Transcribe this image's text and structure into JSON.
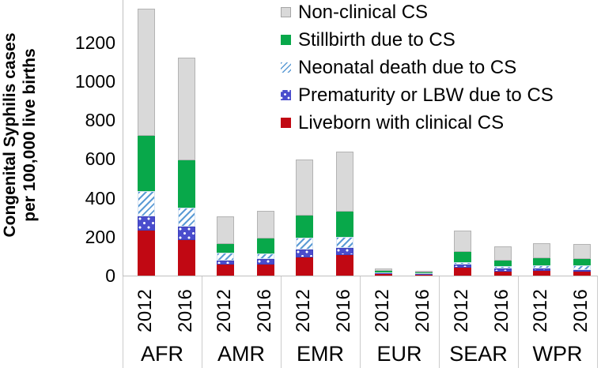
{
  "colors": {
    "liveborn_red": "#c10813",
    "prematurity_blue": "#4a4dcd",
    "neonatal_stripe_blue": "#5b9bd5",
    "stillbirth_green": "#08a84a",
    "nonclinical_gray": "#d9d9d9",
    "bar_border_gray": "#b3b3b3",
    "axis_gray": "#bfbfbf"
  },
  "legend": {
    "items": [
      {
        "label": "Non-clinical CS",
        "swatch": "gray"
      },
      {
        "label": "Stillbirth due to CS",
        "swatch": "green"
      },
      {
        "label": "Neonatal death due to CS",
        "swatch": "hatch"
      },
      {
        "label": "Prematurity or LBW due to CS",
        "swatch": "dots"
      },
      {
        "label": "Liveborn with clinical CS",
        "swatch": "red"
      }
    ]
  },
  "chart_data": {
    "type": "bar",
    "stacked": true,
    "title": "",
    "ylabel": "Congenital Syphilis cases per 100,000 live births",
    "ylabel_lines": [
      "Congenital Syphilis cases",
      "per 100,000 live births"
    ],
    "ylim": [
      0,
      1420
    ],
    "yticks": [
      0,
      200,
      400,
      600,
      800,
      1000,
      1200
    ],
    "grid": false,
    "legend_position": "top-right",
    "groups": [
      "AFR",
      "AMR",
      "EMR",
      "EUR",
      "SEAR",
      "WPR"
    ],
    "years": [
      "2012",
      "2016"
    ],
    "categories": [
      "AFR 2012",
      "AFR 2016",
      "AMR 2012",
      "AMR 2016",
      "EMR 2012",
      "EMR 2016",
      "EUR 2012",
      "EUR 2016",
      "SEAR 2012",
      "SEAR 2016",
      "WPR 2012",
      "WPR 2016"
    ],
    "series": [
      {
        "name": "Liveborn with clinical CS",
        "swatch": "red",
        "color": "#c10813",
        "values": [
          230,
          181,
          55,
          59,
          92,
          105,
          8,
          6,
          39,
          21,
          25,
          21
        ]
      },
      {
        "name": "Prematurity or LBW due to CS",
        "swatch": "dots",
        "color": "#4a4dcd",
        "values": [
          76,
          73,
          23,
          27,
          44,
          38,
          3,
          2,
          16,
          14,
          10,
          9
        ]
      },
      {
        "name": "Neonatal death due to CS",
        "swatch": "hatch",
        "color": "#5b9bd5",
        "values": [
          131,
          96,
          38,
          27,
          61,
          57,
          5,
          3,
          16,
          13,
          17,
          22
        ]
      },
      {
        "name": "Stillbirth due to CS",
        "swatch": "green",
        "color": "#08a84a",
        "values": [
          282,
          244,
          47,
          77,
          111,
          130,
          8,
          4,
          52,
          31,
          37,
          33
        ]
      },
      {
        "name": "Non-clinical CS",
        "swatch": "gray",
        "color": "#d9d9d9",
        "values": [
          657,
          527,
          143,
          145,
          289,
          307,
          13,
          10,
          108,
          73,
          77,
          78
        ]
      }
    ],
    "totals": [
      1376,
      1121,
      306,
      335,
      597,
      637,
      37,
      25,
      231,
      152,
      166,
      163
    ]
  }
}
